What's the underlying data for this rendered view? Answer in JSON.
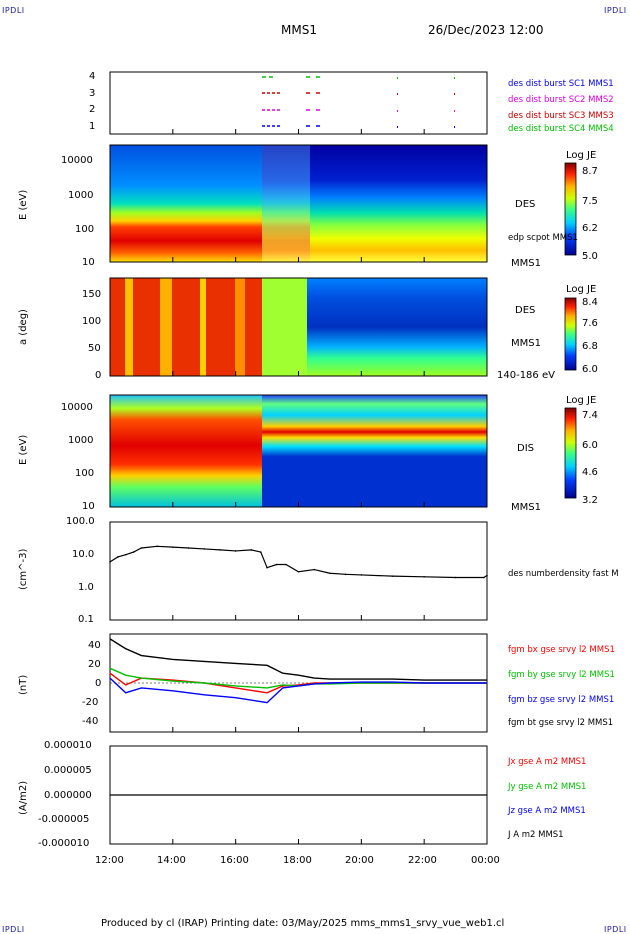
{
  "header": {
    "corner_left_top": "IPDLI",
    "corner_right_top": "IPDLI",
    "corner_left_bottom": "IPDLI",
    "corner_right_bottom": "IPDLI",
    "spacecraft": "MMS1",
    "datetime": "26/Dec/2023 12:00"
  },
  "footer": {
    "text": "Produced by cl (IRAP)   Printing date: 03/May/2025   mms_mms1_srvy_vue_web1.cl"
  },
  "colors": {
    "red": "#ff0000",
    "green": "#00c000",
    "blue": "#0000ff",
    "magenta": "#e000e0",
    "black": "#000000",
    "navy": "#0000a0"
  },
  "x_axis": {
    "ticks": [
      "12:00",
      "14:00",
      "16:00",
      "18:00",
      "20:00",
      "22:00",
      "00:00"
    ]
  },
  "panels": {
    "burst": {
      "yticks": [
        "4",
        "3",
        "2",
        "1"
      ],
      "legend": [
        {
          "label": "des dist burst SC1 MMS1",
          "color": "#0000ff"
        },
        {
          "label": "des dist burst SC2 MMS2",
          "color": "#e000e0"
        },
        {
          "label": "des dist burst SC3 MMS3",
          "color": "#cc0000"
        },
        {
          "label": "des dist burst SC4 MMS4",
          "color": "#00c000"
        }
      ]
    },
    "des_energy": {
      "ylabel": "E (eV)",
      "yticks": [
        "10000",
        "1000",
        "100",
        "10"
      ],
      "label": "DES",
      "label2": "edp scpot MMS1",
      "label3": "MMS1",
      "cbar_title": "Log JE",
      "cbar_ticks": [
        "8.7",
        "7.5",
        "6.2",
        "5.0"
      ]
    },
    "des_pitch": {
      "ylabel": "a (deg)",
      "yticks": [
        "150",
        "100",
        "50",
        "0"
      ],
      "label": "DES",
      "label2": "MMS1",
      "label3": "140-186 eV",
      "cbar_title": "Log JE",
      "cbar_ticks": [
        "8.4",
        "7.6",
        "6.8",
        "6.0"
      ]
    },
    "dis_energy": {
      "ylabel": "E (eV)",
      "yticks": [
        "10000",
        "1000",
        "100",
        "10"
      ],
      "label": "DIS",
      "label2": "MMS1",
      "cbar_title": "Log JE",
      "cbar_ticks": [
        "7.4",
        "6.0",
        "4.6",
        "3.2"
      ]
    },
    "density": {
      "ylabel": "(cm^-3)",
      "yticks": [
        "100.0",
        "10.0",
        "1.0",
        "0.1"
      ],
      "label": "des numberdensity fast M"
    },
    "bfield": {
      "ylabel": "(nT)",
      "yticks": [
        "40",
        "20",
        "0",
        "-20",
        "-40"
      ],
      "legend": [
        {
          "label": "fgm bx gse srvy l2 MMS1",
          "color": "#ff0000"
        },
        {
          "label": "fgm by gse srvy l2 MMS1",
          "color": "#00c000"
        },
        {
          "label": "fgm bz gse srvy l2 MMS1",
          "color": "#0000ff"
        },
        {
          "label": "fgm bt gse srvy l2 MMS1",
          "color": "#000000"
        }
      ]
    },
    "current": {
      "ylabel": "(A/m2)",
      "yticks": [
        "0.000010",
        "0.000005",
        "0.000000",
        "-0.000005",
        "-0.000010"
      ],
      "legend": [
        {
          "label": "Jx gse A m2 MMS1",
          "color": "#ff0000"
        },
        {
          "label": "Jy gse A m2 MMS1",
          "color": "#00c000"
        },
        {
          "label": "Jz gse A m2 MMS1",
          "color": "#0000ff"
        },
        {
          "label": "J A m2 MMS1",
          "color": "#000000"
        }
      ]
    }
  },
  "chart_data": [
    {
      "type": "line",
      "x_unit": "hours since 12:00",
      "ylabel": "(cm^-3)",
      "y_scale": "log",
      "ylim": [
        0.1,
        100
      ],
      "series": [
        {
          "name": "des numberdensity fast M",
          "x": [
            0,
            0.25,
            0.5,
            0.75,
            1.0,
            1.5,
            2.0,
            2.5,
            3.0,
            3.5,
            4.0,
            4.5,
            4.8,
            5.0,
            5.3,
            5.6,
            6.0,
            6.5,
            7.0,
            7.5,
            8.0,
            9.0,
            10.0,
            11.0,
            11.9,
            12.0
          ],
          "y": [
            6.0,
            8.5,
            10,
            12,
            16,
            18,
            17,
            16,
            15,
            14,
            13,
            14,
            12,
            4,
            5,
            5,
            3,
            3.5,
            2.7,
            2.5,
            2.4,
            2.2,
            2.1,
            2.0,
            2.0,
            2.3
          ]
        }
      ]
    },
    {
      "type": "line",
      "x_unit": "hours since 12:00",
      "ylabel": "(nT)",
      "ylim": [
        -50,
        50
      ],
      "series": [
        {
          "name": "fgm bt gse srvy l2 MMS1",
          "x": [
            0,
            0.5,
            1,
            2,
            3,
            4,
            5,
            5.5,
            6,
            6.5,
            7,
            8,
            9,
            10,
            11,
            12
          ],
          "y": [
            45,
            35,
            28,
            24,
            22,
            20,
            18,
            10,
            8,
            5,
            4,
            4,
            4,
            3,
            3,
            3
          ]
        },
        {
          "name": "fgm bx gse srvy l2 MMS1",
          "x": [
            0,
            0.5,
            1,
            2,
            3,
            4,
            5,
            5.5,
            6,
            6.5,
            7,
            8,
            9,
            10,
            11,
            12
          ],
          "y": [
            10,
            -2,
            5,
            3,
            0,
            -5,
            -10,
            -3,
            -2,
            0,
            0,
            0,
            0,
            0,
            0,
            0
          ]
        },
        {
          "name": "fgm by gse srvy l2 MMS1",
          "x": [
            0,
            0.5,
            1,
            2,
            3,
            4,
            5,
            5.5,
            6,
            6.5,
            7,
            8,
            9,
            10,
            11,
            12
          ],
          "y": [
            15,
            8,
            5,
            2,
            0,
            -3,
            -5,
            -2,
            -3,
            -1,
            -1,
            0,
            0,
            0,
            0,
            0
          ]
        },
        {
          "name": "fgm bz gse srvy l2 MMS1",
          "x": [
            0,
            0.5,
            1,
            2,
            3,
            4,
            5,
            5.5,
            6,
            6.5,
            7,
            8,
            9,
            10,
            11,
            12
          ],
          "y": [
            5,
            -10,
            -5,
            -8,
            -12,
            -15,
            -20,
            -5,
            -3,
            -1,
            0,
            1,
            1,
            0,
            0,
            0
          ]
        }
      ]
    },
    {
      "type": "line",
      "x_unit": "hours since 12:00",
      "ylabel": "(A/m2)",
      "ylim": [
        -1e-05,
        1e-05
      ],
      "series": [
        {
          "name": "J A m2 MMS1",
          "x": [
            0,
            12
          ],
          "y": [
            0,
            0
          ]
        }
      ]
    }
  ]
}
